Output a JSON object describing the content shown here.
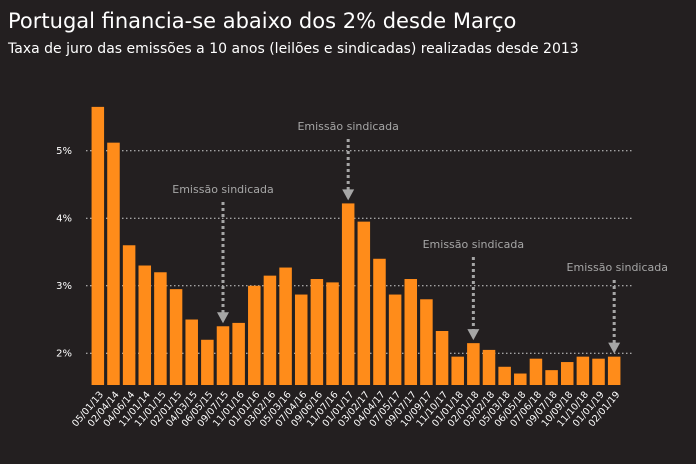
{
  "chart_data": {
    "type": "bar",
    "title": "Portugal financia-se abaixo dos 2% desde Março",
    "subtitle": "Taxa de juro das emissões a 10 anos (leilões e sindicadas) realizadas desde 2013",
    "categories": [
      "05/01/13",
      "02/04/14",
      "04/06/14",
      "11/01/14",
      "11/01/15",
      "02/01/15",
      "04/03/15",
      "06/05/15",
      "09/07/15",
      "11/01/16",
      "01/01/16",
      "03/02/16",
      "05/03/16",
      "07/04/16",
      "09/06/16",
      "11/07/16",
      "01/01/17",
      "03/02/17",
      "04/04/17",
      "07/05/17",
      "09/07/17",
      "10/09/17",
      "11/10/17",
      "01/01/18",
      "02/01/18",
      "03/02/18",
      "05/03/18",
      "06/05/18",
      "07/06/18",
      "09/07/18",
      "10/09/18",
      "11/10/18",
      "01/01/19",
      "02/01/19"
    ],
    "values": [
      5.65,
      5.12,
      3.6,
      3.3,
      3.2,
      2.95,
      2.5,
      2.2,
      2.4,
      2.45,
      3.0,
      3.15,
      3.27,
      2.87,
      3.1,
      3.05,
      4.22,
      3.95,
      3.4,
      2.87,
      3.1,
      2.8,
      2.33,
      1.95,
      2.15,
      2.05,
      1.8,
      1.7,
      1.92,
      1.75,
      1.87,
      1.95,
      1.92,
      1.95
    ],
    "color": "#ff8c1a",
    "ylim": [
      1.53,
      5.9
    ],
    "yticks": [
      {
        "value": 2,
        "label": "2%"
      },
      {
        "value": 3,
        "label": "3%"
      },
      {
        "value": 4,
        "label": "4%"
      },
      {
        "value": 5,
        "label": "5%"
      }
    ],
    "grid": true,
    "annotations": [
      {
        "text": "Emissão sindicada",
        "category": "09/07/15"
      },
      {
        "text": "Emissão sindicada",
        "category": "01/01/17"
      },
      {
        "text": "Emissão sindicada",
        "category": "02/01/18"
      },
      {
        "text": "Emissão sindicada",
        "category": "02/01/19"
      }
    ]
  }
}
